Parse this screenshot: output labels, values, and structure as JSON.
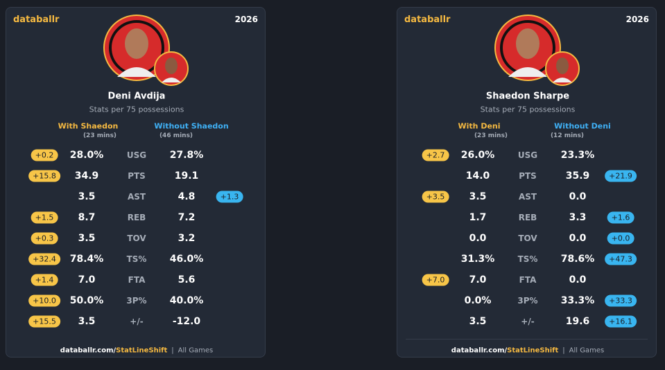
{
  "cards": [
    {
      "brand": "databallr",
      "year": "2026",
      "player": "Deni Avdija",
      "subtitle": "Stats per 75 possessions",
      "with_header": "With Shaedon",
      "with_mins": "(23 mins)",
      "without_header": "Without Shaedon",
      "without_mins": "(46 mins)",
      "rows": [
        {
          "stat": "USG",
          "with": "28.0%",
          "without": "27.8%",
          "diff": "+0.2",
          "side": "with"
        },
        {
          "stat": "PTS",
          "with": "34.9",
          "without": "19.1",
          "diff": "+15.8",
          "side": "with"
        },
        {
          "stat": "AST",
          "with": "3.5",
          "without": "4.8",
          "diff": "+1.3",
          "side": "without"
        },
        {
          "stat": "REB",
          "with": "8.7",
          "without": "7.2",
          "diff": "+1.5",
          "side": "with"
        },
        {
          "stat": "TOV",
          "with": "3.5",
          "without": "3.2",
          "diff": "+0.3",
          "side": "with"
        },
        {
          "stat": "TS%",
          "with": "78.4%",
          "without": "46.0%",
          "diff": "+32.4",
          "side": "with"
        },
        {
          "stat": "FTA",
          "with": "7.0",
          "without": "5.6",
          "diff": "+1.4",
          "side": "with"
        },
        {
          "stat": "3P%",
          "with": "50.0%",
          "without": "40.0%",
          "diff": "+10.0",
          "side": "with"
        },
        {
          "stat": "+/-",
          "with": "3.5",
          "without": "-12.0",
          "diff": "+15.5",
          "side": "with"
        }
      ],
      "footer": {
        "site": "databallr.com/",
        "link": "StatLineShift",
        "sep": "|",
        "scope": "All Games"
      }
    },
    {
      "brand": "databallr",
      "year": "2026",
      "player": "Shaedon Sharpe",
      "subtitle": "Stats per 75 possessions",
      "with_header": "With Deni",
      "with_mins": "(23 mins)",
      "without_header": "Without Deni",
      "without_mins": "(12 mins)",
      "rows": [
        {
          "stat": "USG",
          "with": "26.0%",
          "without": "23.3%",
          "diff": "+2.7",
          "side": "with"
        },
        {
          "stat": "PTS",
          "with": "14.0",
          "without": "35.9",
          "diff": "+21.9",
          "side": "without"
        },
        {
          "stat": "AST",
          "with": "3.5",
          "without": "0.0",
          "diff": "+3.5",
          "side": "with"
        },
        {
          "stat": "REB",
          "with": "1.7",
          "without": "3.3",
          "diff": "+1.6",
          "side": "without"
        },
        {
          "stat": "TOV",
          "with": "0.0",
          "without": "0.0",
          "diff": "+0.0",
          "side": "without"
        },
        {
          "stat": "TS%",
          "with": "31.3%",
          "without": "78.6%",
          "diff": "+47.3",
          "side": "without"
        },
        {
          "stat": "FTA",
          "with": "7.0",
          "without": "0.0",
          "diff": "+7.0",
          "side": "with"
        },
        {
          "stat": "3P%",
          "with": "0.0%",
          "without": "33.3%",
          "diff": "+33.3",
          "side": "without"
        },
        {
          "stat": "+/-",
          "with": "3.5",
          "without": "19.6",
          "diff": "+16.1",
          "side": "without"
        }
      ],
      "footer": {
        "site": "databallr.com/",
        "link": "StatLineShift",
        "sep": "|",
        "scope": "All Games"
      }
    }
  ]
}
